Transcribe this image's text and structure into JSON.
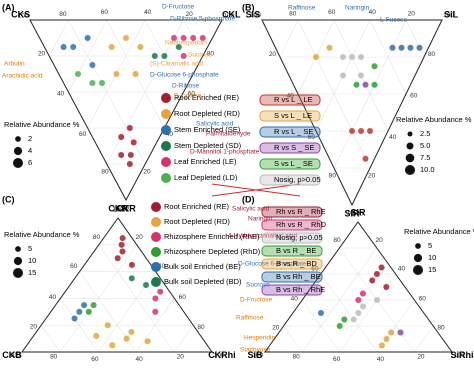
{
  "chart_data": [
    {
      "type": "ternary",
      "label": "(A)",
      "corners": [
        "CKS",
        "CKL",
        "CKR"
      ],
      "ticks": [
        20,
        40,
        60,
        80,
        100
      ],
      "grid": true,
      "series": [
        {
          "name": "Root Enriched (RE)",
          "color": "#a51c30",
          "a": [
            10,
            15,
            20,
            12,
            18,
            8
          ],
          "b": [
            15,
            10,
            15,
            20,
            22,
            12
          ],
          "c": [
            75,
            75,
            65,
            68,
            60,
            80
          ]
        },
        {
          "name": "Root Depleted (RD)",
          "color": "#e8a33d",
          "a": [
            45,
            35,
            50,
            30,
            40
          ],
          "b": [
            45,
            50,
            35,
            40,
            30
          ],
          "c": [
            10,
            15,
            15,
            30,
            30
          ]
        },
        {
          "name": "Stem Enriched (SE)",
          "color": "#2f6fb0",
          "a": [
            70,
            65,
            75,
            55
          ],
          "b": [
            15,
            25,
            10,
            20
          ],
          "c": [
            15,
            10,
            15,
            25
          ]
        },
        {
          "name": "Stem Depleted (SD)",
          "color": "#1b7a4a",
          "a": [
            20,
            15,
            25
          ],
          "b": [
            60,
            70,
            55
          ],
          "c": [
            20,
            15,
            20
          ]
        },
        {
          "name": "Leaf Enriched (LE)",
          "color": "#d6336c",
          "a": [
            10,
            15,
            5,
            20,
            10
          ],
          "b": [
            80,
            75,
            85,
            70,
            70
          ],
          "c": [
            10,
            10,
            10,
            10,
            20
          ]
        },
        {
          "name": "Leaf Depleted (LD)",
          "color": "#4caf50",
          "a": [
            60,
            50,
            45
          ],
          "b": [
            10,
            15,
            20
          ],
          "c": [
            30,
            35,
            35
          ]
        }
      ],
      "size_legend": {
        "title": "Relative Abundance %",
        "values": [
          2,
          4,
          6
        ]
      },
      "annotations": [
        {
          "text": "D-Fructose",
          "color": "#2f6fb0"
        },
        {
          "text": "D-Ribose 5-phosphate",
          "color": "#2f6fb0"
        },
        {
          "text": "Neohesperidin",
          "color": "#e8a33d"
        },
        {
          "text": "Sucrose",
          "color": "#e8a33d"
        },
        {
          "text": "(S)-Citramalic acid",
          "color": "#e8a33d"
        },
        {
          "text": "D-Glucose 6-phosphate",
          "color": "#2f6fb0"
        },
        {
          "text": "Arbutin",
          "color": "#e07b00"
        },
        {
          "text": "Arachidic acid",
          "color": "#e07b00"
        },
        {
          "text": "D-Ribose",
          "color": "#2f6fb0"
        },
        {
          "text": "D-Lyxose",
          "color": "#e07b00"
        },
        {
          "text": "Salicylic acid",
          "color": "#2f6fb0"
        },
        {
          "text": "Palmitaldehyde",
          "color": "#a51c30"
        },
        {
          "text": "D-Mannitol 1-phosphate",
          "color": "#a51c30"
        }
      ]
    },
    {
      "type": "ternary",
      "label": "(B)",
      "corners": [
        "SiS",
        "SiL",
        "SiR"
      ],
      "ticks": [
        20,
        40,
        60,
        80,
        100
      ],
      "grid": true,
      "series": [
        {
          "name": "R vs L _ LE",
          "color": "#c0392b",
          "a": [
            10,
            15,
            5,
            20
          ],
          "b": [
            30,
            25,
            20,
            20
          ],
          "c": [
            60,
            60,
            75,
            60
          ]
        },
        {
          "name": "S vs L _ LE",
          "color": "#e8a33d",
          "a": [
            60,
            55
          ],
          "b": [
            20,
            30
          ],
          "c": [
            20,
            15
          ]
        },
        {
          "name": "R vs L _ SE",
          "color": "#2f6fb0",
          "a": [
            10,
            15,
            20,
            5
          ],
          "b": [
            75,
            70,
            65,
            80
          ],
          "c": [
            15,
            15,
            15,
            15
          ]
        },
        {
          "name": "R vs S _ SE",
          "color": "#8e44ad",
          "a": [
            25
          ],
          "b": [
            40
          ],
          "c": [
            35
          ]
        },
        {
          "name": "S vs L _ SE",
          "color": "#2ca02c",
          "a": [
            20,
            30,
            25
          ],
          "b": [
            45,
            35,
            50
          ],
          "c": [
            35,
            35,
            25
          ]
        },
        {
          "name": "Nosig, p>0.05",
          "color": "#bbbbbb",
          "a": [
            40,
            35,
            45,
            40,
            30
          ],
          "b": [
            40,
            45,
            35,
            30,
            40
          ],
          "c": [
            20,
            20,
            20,
            30,
            30
          ]
        }
      ],
      "size_legend": {
        "title": "Relative Abundance %",
        "values": [
          2.5,
          5.0,
          7.5,
          10.0
        ],
        "value_labels": [
          "2.5",
          "5.0",
          "7.5",
          "10.0"
        ]
      },
      "annotations": [
        {
          "text": "Raffinose",
          "color": "#2f6fb0"
        },
        {
          "text": "Naringin",
          "color": "#2f6fb0"
        },
        {
          "text": "L-Fucose",
          "color": "#2f6fb0"
        }
      ]
    },
    {
      "type": "ternary",
      "label": "(C)",
      "corners": [
        "CKR",
        "CKB",
        "CKRhi"
      ],
      "ticks": [
        20,
        40,
        60,
        80,
        100
      ],
      "grid": true,
      "series": [
        {
          "name": "Root Enriched (RE)",
          "color": "#a51c30",
          "a": [
            85,
            75,
            70,
            80,
            65
          ],
          "b": [
            5,
            10,
            15,
            8,
            10
          ],
          "c": [
            10,
            15,
            15,
            12,
            25
          ]
        },
        {
          "name": "Root Depleted (RD)",
          "color": "#e8a33d",
          "a": [
            10,
            5,
            15,
            8,
            12,
            20
          ],
          "b": [
            40,
            50,
            35,
            30,
            55,
            45
          ],
          "c": [
            50,
            45,
            50,
            62,
            33,
            35
          ]
        },
        {
          "name": "Rhizosphere Enriched (RhE)",
          "color": "#d6336c",
          "a": [
            40,
            30,
            45
          ],
          "b": [
            10,
            15,
            5
          ],
          "c": [
            50,
            55,
            50
          ]
        },
        {
          "name": "Rhizosphere Depleted (RhD)",
          "color": "#2ca02c",
          "a": [
            35,
            30
          ],
          "b": [
            45,
            50
          ],
          "c": [
            20,
            20
          ]
        },
        {
          "name": "Bulk soil Enriched (BE)",
          "color": "#2f6fb0",
          "a": [
            30,
            25,
            35
          ],
          "b": [
            55,
            60,
            50
          ],
          "c": [
            15,
            15,
            15
          ]
        },
        {
          "name": "Bulk soil Depleted (BD)",
          "color": "#1b7a4a",
          "a": [
            50,
            55
          ],
          "b": [
            10,
            15
          ],
          "c": [
            40,
            30
          ]
        }
      ],
      "size_legend": {
        "title": "Relative Abundance %",
        "values": [
          5,
          10,
          15
        ]
      },
      "annotations": [
        {
          "text": "Salicylic acid",
          "color": "#a51c30"
        },
        {
          "text": "Naringin",
          "color": "#a51c30"
        },
        {
          "text": "4-Hydroxycinnamic acid",
          "color": "#a51c30"
        },
        {
          "text": "D-Glucose 6-phosphate",
          "color": "#2f6fb0"
        },
        {
          "text": "Sucrose",
          "color": "#2f6fb0"
        },
        {
          "text": "D-Fructose",
          "color": "#e07b00"
        },
        {
          "text": "Raffinose",
          "color": "#e07b00"
        },
        {
          "text": "Hesperidin",
          "color": "#e07b00"
        },
        {
          "text": "Stachyose",
          "color": "#e07b00"
        }
      ]
    },
    {
      "type": "ternary",
      "label": "(D)",
      "corners": [
        "SiR",
        "SiB",
        "SiRhi"
      ],
      "ticks": [
        20,
        40,
        60,
        80,
        100
      ],
      "grid": true,
      "series": [
        {
          "name": "Rh vs R _ RhE",
          "color": "#a51c30",
          "a": [
            60,
            55,
            50,
            65
          ],
          "b": [
            10,
            15,
            10,
            5
          ],
          "c": [
            30,
            30,
            40,
            30
          ]
        },
        {
          "name": "Rh vs R _ RhD",
          "color": "#d6336c",
          "a": [
            45,
            40
          ],
          "b": [
            25,
            30
          ],
          "c": [
            30,
            30
          ]
        },
        {
          "name": "Nosig, p>0.05",
          "color": "#bbbbbb",
          "a": [
            35,
            30,
            25,
            40
          ],
          "b": [
            30,
            35,
            40,
            20
          ],
          "c": [
            35,
            35,
            35,
            40
          ]
        },
        {
          "name": "B vs R _ BE",
          "color": "#2ca02c",
          "a": [
            20,
            25
          ],
          "b": [
            50,
            45
          ],
          "c": [
            30,
            30
          ]
        },
        {
          "name": "B vs R _ BD",
          "color": "#e8a33d",
          "a": [
            10,
            5,
            15
          ],
          "b": [
            30,
            35,
            25
          ],
          "c": [
            60,
            60,
            60
          ]
        },
        {
          "name": "B vs Rh _ BE",
          "color": "#2f6fb0",
          "a": [
            30
          ],
          "b": [
            55
          ],
          "c": [
            15
          ]
        },
        {
          "name": "B vs Rh _ RhE",
          "color": "#8e44ad",
          "a": [
            15
          ],
          "b": [
            20
          ],
          "c": [
            65
          ]
        }
      ],
      "size_legend": {
        "title": "Relative Abundance %",
        "values": [
          5,
          10,
          15
        ]
      },
      "annotations": []
    }
  ]
}
